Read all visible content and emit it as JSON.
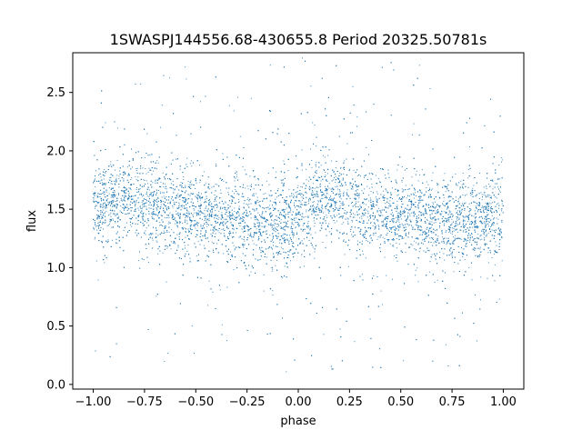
{
  "chart_data": {
    "type": "scatter",
    "title": "1SWASPJ144556.68-430655.8 Period 20325.50781s",
    "xlabel": "phase",
    "ylabel": "flux",
    "xlim": [
      -1.1,
      1.1
    ],
    "ylim": [
      -0.04,
      2.84
    ],
    "x_ticks": [
      -1.0,
      -0.75,
      -0.5,
      -0.25,
      0.0,
      0.25,
      0.5,
      0.75,
      1.0
    ],
    "x_tick_labels": [
      "−1.00",
      "−0.75",
      "−0.50",
      "−0.25",
      "0.00",
      "0.25",
      "0.50",
      "0.75",
      "1.00"
    ],
    "y_ticks": [
      0.0,
      0.5,
      1.0,
      1.5,
      2.0,
      2.5
    ],
    "y_tick_labels": [
      "0.0",
      "0.5",
      "1.0",
      "1.5",
      "2.0",
      "2.5"
    ],
    "grid": false,
    "point_color": "#1f77b4",
    "series": [
      {
        "phase_range": [
          -1.0,
          1.0
        ],
        "mean_flux_profile": {
          "phase": [
            -1.0,
            -0.9,
            -0.85,
            -0.8,
            -0.7,
            -0.5,
            -0.3,
            -0.15,
            0.0,
            0.1,
            0.15,
            0.2,
            0.3,
            0.5,
            0.7,
            0.85,
            1.0
          ],
          "flux": [
            1.48,
            1.58,
            1.62,
            1.6,
            1.52,
            1.45,
            1.4,
            1.37,
            1.43,
            1.58,
            1.62,
            1.58,
            1.5,
            1.43,
            1.4,
            1.38,
            1.45
          ]
        },
        "core_scatter": 0.17,
        "outlier_range": [
          0.1,
          2.8
        ]
      }
    ]
  }
}
